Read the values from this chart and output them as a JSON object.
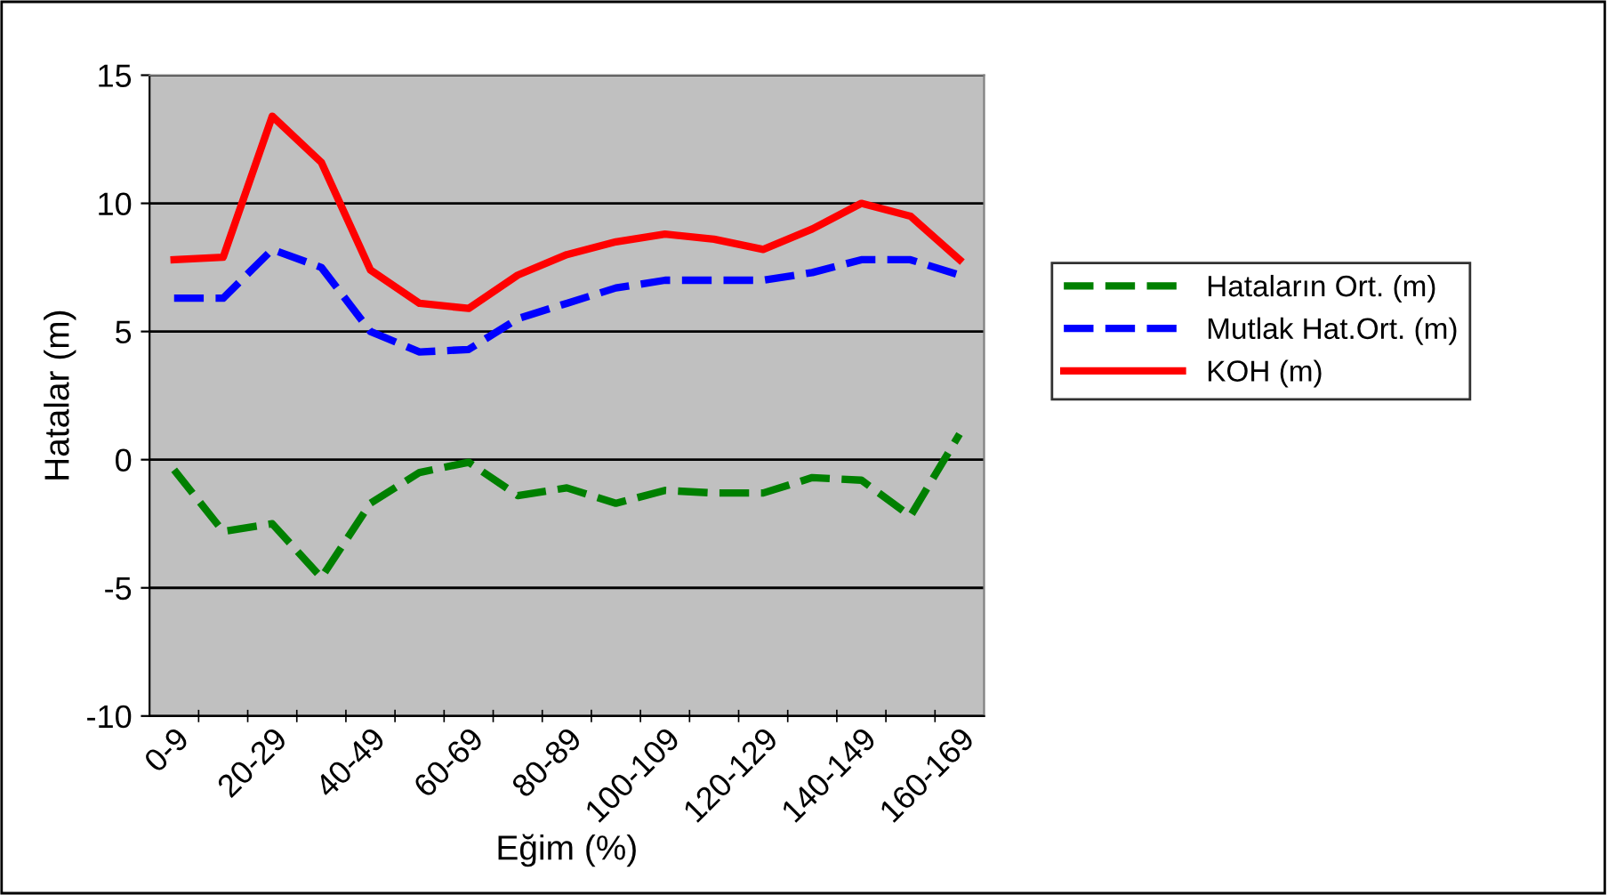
{
  "chart_data": {
    "type": "line",
    "xlabel": "Eğim (%)",
    "ylabel": "Hatalar (m)",
    "categories": [
      "0-9",
      null,
      "20-29",
      null,
      "40-49",
      null,
      "60-69",
      null,
      "80-89",
      null,
      "100-109",
      null,
      "120-129",
      null,
      "140-149",
      null,
      "160-169"
    ],
    "series": [
      {
        "name": "Hataların Ort. (m)",
        "color": "#008000",
        "line_style": "dashed",
        "values": [
          -0.4,
          -2.8,
          -2.5,
          -4.6,
          -1.7,
          -0.5,
          -0.1,
          -1.4,
          -1.1,
          -1.7,
          -1.2,
          -1.3,
          -1.3,
          -0.7,
          -0.8,
          -2.2,
          1.0
        ]
      },
      {
        "name": "Mutlak Hat.Ort. (m)",
        "color": "#0000ff",
        "line_style": "dashed",
        "values": [
          6.3,
          6.3,
          8.2,
          7.5,
          5.0,
          4.2,
          4.3,
          5.5,
          6.1,
          6.7,
          7.0,
          7.0,
          7.0,
          7.3,
          7.8,
          7.8,
          7.2
        ]
      },
      {
        "name": "KOH (m)",
        "color": "#ff0000",
        "line_style": "solid",
        "values": [
          7.8,
          7.9,
          13.4,
          11.6,
          7.4,
          6.1,
          5.9,
          7.2,
          8.0,
          8.5,
          8.8,
          8.6,
          8.2,
          9.0,
          10.0,
          9.5,
          7.8
        ]
      }
    ],
    "ylim": [
      -10,
      15
    ],
    "yticks": [
      -10,
      -5,
      0,
      5,
      10,
      15
    ],
    "grid": "y",
    "legend": "right",
    "marker": "none"
  }
}
